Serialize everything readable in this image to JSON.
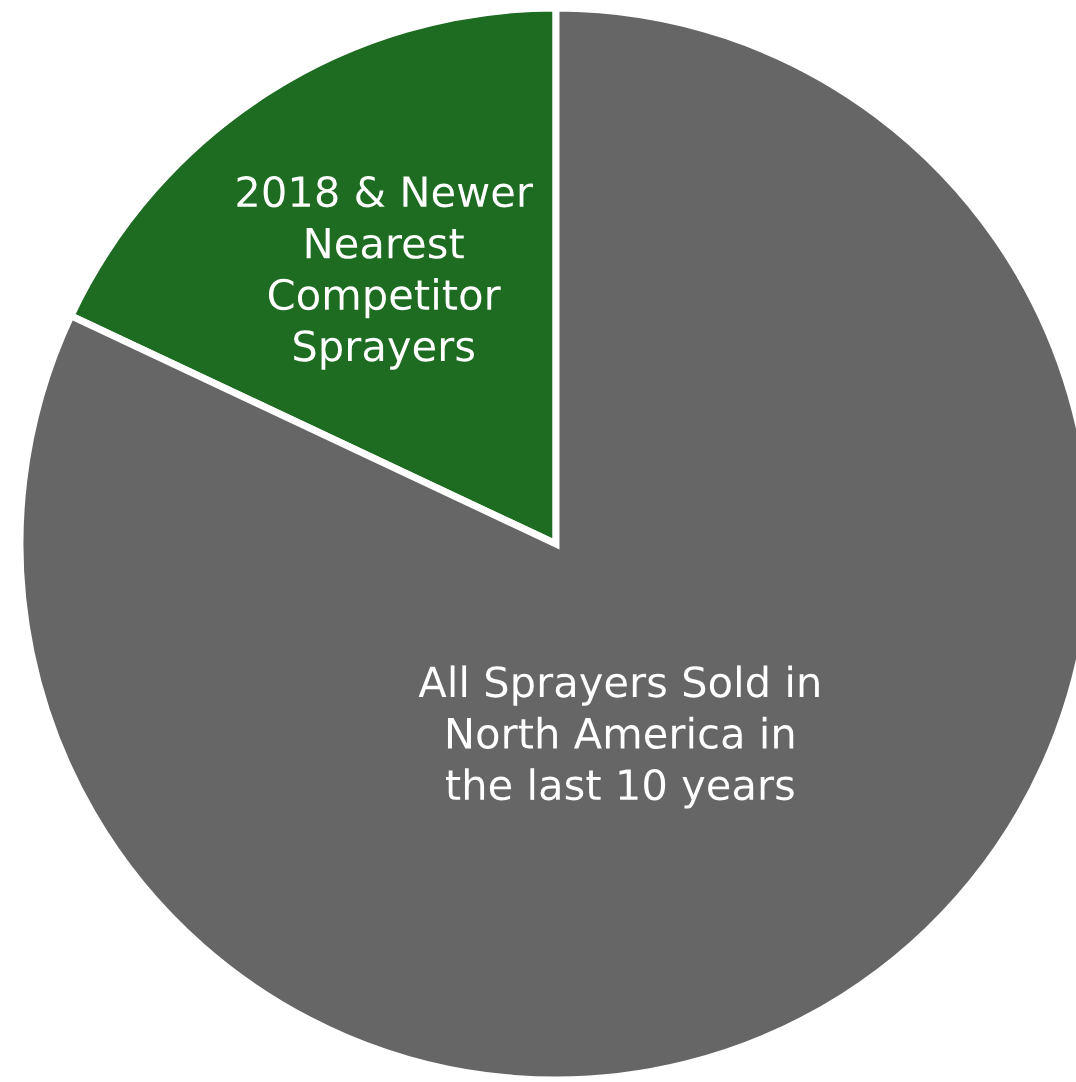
{
  "chart_data": {
    "type": "pie",
    "categories": [
      "2018 & Newer\nNearest\nCompetitor\nSprayers",
      "All Sprayers Sold in\nNorth America in\nthe last 10 years"
    ],
    "values": [
      18,
      82
    ],
    "colors": [
      "#1e6b22",
      "#666666"
    ]
  }
}
